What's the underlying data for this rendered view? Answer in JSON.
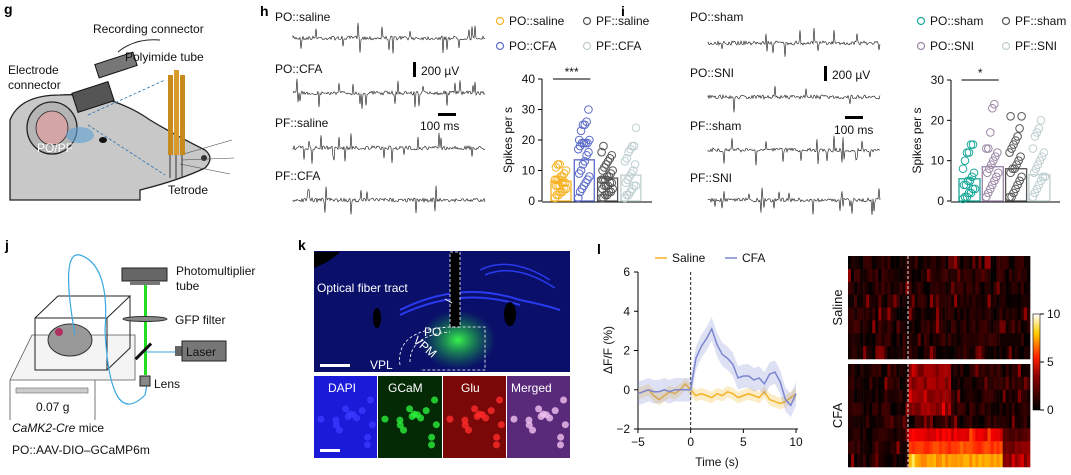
{
  "panels": {
    "g": {
      "label": "g",
      "recording_connector": "Recording connector",
      "polyimide_tube": "Polyimide tube",
      "electrode_connector_1": "Electrode",
      "electrode_connector_2": "connector",
      "region": "PO/PF",
      "tetrode": "Tetrode"
    },
    "h": {
      "label": "h",
      "traces": [
        "PO::saline",
        "PO::CFA",
        "PF::saline",
        "PF::CFA"
      ],
      "scale_v": "200 µV",
      "scale_t": "100 ms"
    },
    "i": {
      "label": "i",
      "traces": [
        "PO::sham",
        "PO::SNI",
        "PF::sham",
        "PF::SNI"
      ],
      "scale_v": "200 µV",
      "scale_t": "100 ms"
    },
    "j": {
      "label": "j",
      "pmt_1": "Photomultiplier",
      "pmt_2": "tube",
      "gfp_filter": "GFP filter",
      "laser": "Laser",
      "lens": "Lens",
      "weight": "0.07 g",
      "mice_italic": "CaMK2-Cre",
      "mice": " mice",
      "virus": "PO::AAV-DIO–GCaMP6m"
    },
    "k": {
      "label": "k",
      "fiber": "Optical fiber tract",
      "po": "PO",
      "vpm": "VPM",
      "vpl": "VPL",
      "channels": [
        "DAPI",
        "GCaM",
        "Glu",
        "Merged"
      ]
    },
    "l": {
      "label": "l"
    }
  },
  "chart_data": [
    {
      "id": "h-bar",
      "type": "bar",
      "legend": [
        "PO::saline",
        "PF::saline",
        "PO::CFA",
        "PF::CFA"
      ],
      "legend_placement": "top",
      "categories": [
        "PO::saline",
        "PO::CFA",
        "PF::saline",
        "PF::CFA"
      ],
      "colors": [
        "#f5b324",
        "#5c6bc8",
        "#555555",
        "#bfcfcf"
      ],
      "values": [
        6.5,
        13.5,
        7.5,
        8.5
      ],
      "points": [
        [
          1,
          2,
          2,
          3,
          3,
          4,
          4,
          5,
          5,
          5,
          6,
          6,
          6,
          7,
          7,
          7,
          8,
          8,
          9,
          10,
          11,
          12,
          12
        ],
        [
          1,
          3,
          4,
          5,
          6,
          7,
          8,
          9,
          10,
          12,
          13,
          15,
          16,
          17,
          18,
          19,
          19,
          19,
          19,
          20,
          20,
          23,
          25,
          25,
          26,
          30
        ],
        [
          1,
          1,
          2,
          2,
          3,
          3,
          4,
          4,
          5,
          5,
          5,
          6,
          6,
          7,
          7,
          7,
          8,
          8,
          9,
          10,
          10,
          11,
          12,
          13,
          14,
          15,
          16,
          18
        ],
        [
          1,
          2,
          2,
          3,
          4,
          5,
          5,
          6,
          7,
          8,
          9,
          10,
          12,
          13,
          14,
          16,
          17,
          18,
          18,
          24
        ]
      ],
      "ylabel": "Spikes per s",
      "ylim": [
        0,
        40
      ],
      "yticks": [
        "0",
        "10",
        "20",
        "30",
        "40"
      ],
      "significance": "***"
    },
    {
      "id": "i-bar",
      "type": "bar",
      "legend": [
        "PO::sham",
        "PF::sham",
        "PO::SNI",
        "PF::SNI"
      ],
      "legend_placement": "top",
      "categories": [
        "PO::sham",
        "PO::SNI",
        "PF::sham",
        "PF::SNI"
      ],
      "colors": [
        "#1aa89a",
        "#9b86a6",
        "#555555",
        "#bfcfcf"
      ],
      "values": [
        5.5,
        8.5,
        8,
        6.5
      ],
      "points": [
        [
          0.5,
          1,
          1,
          2,
          2,
          3,
          3,
          4,
          4,
          5,
          5,
          6,
          7,
          8,
          10,
          12,
          12,
          14,
          14
        ],
        [
          1,
          2,
          3,
          4,
          5,
          6,
          7,
          7,
          8,
          9,
          10,
          11,
          12,
          13,
          13,
          17,
          23,
          24
        ],
        [
          1,
          1,
          2,
          3,
          4,
          5,
          6,
          7,
          8,
          8,
          9,
          10,
          11,
          12,
          13,
          14,
          15,
          16,
          18,
          21,
          21
        ],
        [
          1,
          2,
          3,
          4,
          5,
          6,
          6,
          7,
          8,
          9,
          10,
          11,
          12,
          13,
          16,
          17,
          18,
          20
        ]
      ],
      "ylabel": "Spikes per s",
      "ylim": [
        0,
        30
      ],
      "yticks": [
        "0",
        "10",
        "20",
        "30"
      ],
      "significance": "*"
    },
    {
      "id": "l-line",
      "type": "line",
      "legend": [
        "Saline",
        "CFA"
      ],
      "legend_placement": "top",
      "colors": [
        "#f5b324",
        "#7b86d0"
      ],
      "xlabel": "Time (s)",
      "ylabel": "ΔF/F (%)",
      "xlim": [
        -5,
        10
      ],
      "ylim": [
        -2,
        6
      ],
      "xticks": [
        "−5",
        "0",
        "5",
        "10"
      ],
      "yticks": [
        "−2",
        "0",
        "2",
        "4",
        "6"
      ],
      "x": [
        -5,
        -4.5,
        -4,
        -3.5,
        -3,
        -2.5,
        -2,
        -1.5,
        -1,
        -0.5,
        0,
        0.5,
        1,
        1.5,
        2,
        2.5,
        3,
        3.5,
        4,
        4.5,
        5,
        5.5,
        6,
        6.5,
        7,
        7.5,
        8,
        8.5,
        9,
        9.5,
        10
      ],
      "series": [
        {
          "name": "Saline",
          "values": [
            -0.2,
            -0.1,
            0,
            -0.3,
            -0.5,
            -0.3,
            -0.1,
            -0.2,
            0,
            0.3,
            0,
            -0.3,
            -0.2,
            -0.3,
            -0.4,
            -0.2,
            -0.3,
            -0.1,
            -0.2,
            -0.4,
            -0.3,
            -0.2,
            -0.3,
            -0.4,
            -0.1,
            -0.5,
            -0.6,
            -0.7,
            -0.6,
            -0.4,
            -0.2
          ]
        },
        {
          "name": "CFA",
          "values": [
            -0.2,
            -0.1,
            0,
            -0.1,
            -0.1,
            0,
            -0.1,
            0,
            0,
            0,
            0,
            1.6,
            2.2,
            2.6,
            3.1,
            2.3,
            1.8,
            1.6,
            1.3,
            0.6,
            0.7,
            0.7,
            0.5,
            0.6,
            0.3,
            0.8,
            0.9,
            0.4,
            -0.5,
            -0.8,
            -0.2
          ]
        }
      ],
      "event_line_x": 0
    },
    {
      "id": "l-heatmap",
      "type": "heatmap",
      "row_groups": [
        "Saline",
        "CFA"
      ],
      "colorbar_ticks": [
        "0",
        "5",
        "10"
      ],
      "colorbar_range": [
        0,
        10
      ]
    }
  ]
}
